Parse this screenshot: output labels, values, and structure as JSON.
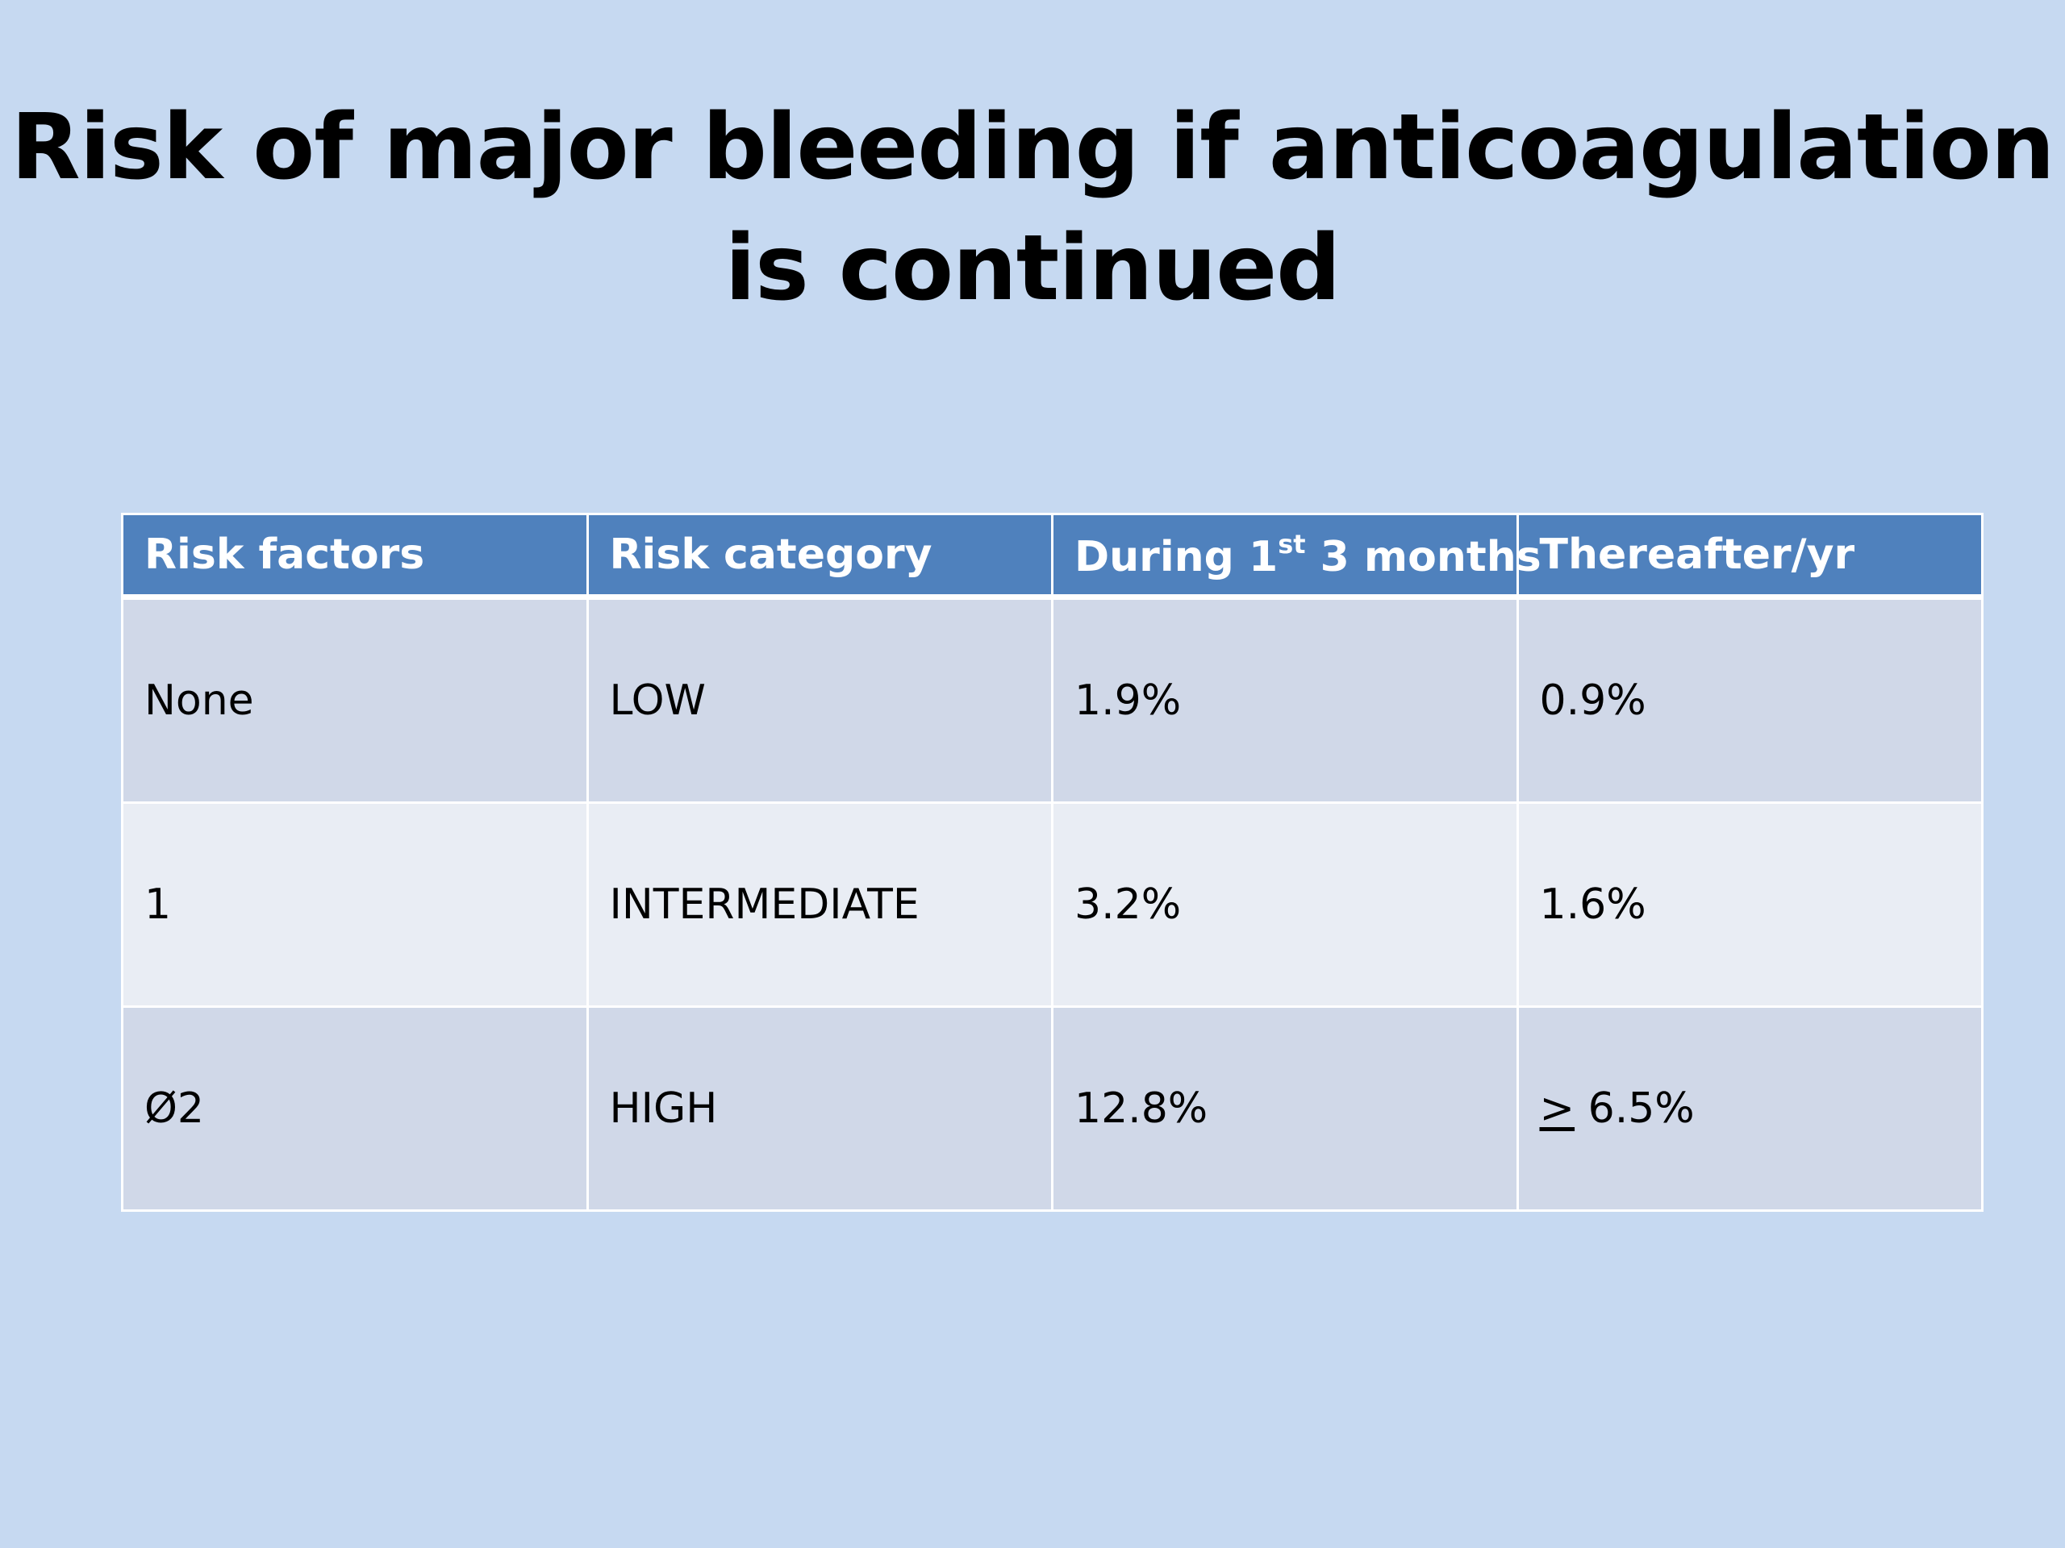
{
  "slide": {
    "title_line1": "Risk of major bleeding if anticoagulation",
    "title_line2": "is continued"
  },
  "table": {
    "headers": {
      "col1": "Risk factors",
      "col2": "Risk category",
      "col3_pre": "During 1",
      "col3_sup": "st",
      "col3_post": " 3 months",
      "col4": "Thereafter/yr"
    },
    "rows": [
      {
        "risk_factors": "None",
        "risk_category": "LOW",
        "first_3_months": "1.9%",
        "thereafter_symbol": "",
        "thereafter": "0.9%"
      },
      {
        "risk_factors": "1",
        "risk_category": "INTERMEDIATE",
        "first_3_months": "3.2%",
        "thereafter_symbol": "",
        "thereafter": "1.6%"
      },
      {
        "risk_factors": "Ø2",
        "risk_category": "HIGH",
        "first_3_months": "12.8%",
        "thereafter_symbol": ">",
        "thereafter": " 6.5%"
      }
    ]
  },
  "colors": {
    "background": "#c6d9f1",
    "header_fill": "#4f81bd",
    "row_band_dark": "#d0d8e8",
    "row_band_light": "#e9edf4"
  }
}
